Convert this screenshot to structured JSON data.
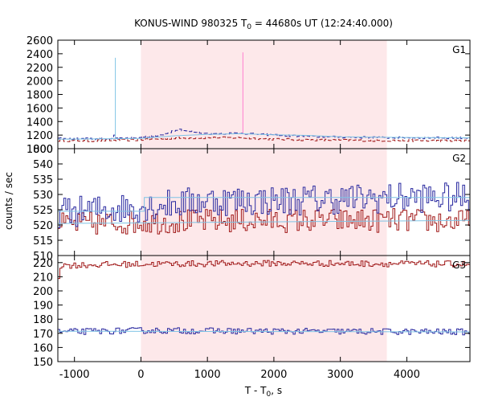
{
  "chart_data": {
    "type": "line",
    "title": {
      "main": "KONUS-WIND 980325 T",
      "sub": "0",
      "rest": " = 44680s UT (12:24:40.000)"
    },
    "xlabel": {
      "main": "T - T",
      "sub": "0",
      "rest": ", s"
    },
    "ylabel": "counts / sec",
    "xlim": [
      -1250,
      4950
    ],
    "x_ticks": [
      -1000,
      0,
      1000,
      2000,
      3000,
      4000
    ],
    "x_tick_labels": [
      "-1000",
      "0",
      "1000",
      "2000",
      "3000",
      "4000"
    ],
    "highlight_interval": [
      0,
      3700
    ],
    "colors": {
      "red_series": "#a01818",
      "blue_series": "#2a2aa0",
      "fit_line": "#7fc4e6",
      "pink_spike": "#ff7fcf",
      "highlight": "#fde8ea"
    },
    "panels": [
      {
        "label": "G1",
        "ylim": [
          1000,
          2600
        ],
        "y_ticks": [
          1000,
          1200,
          1400,
          1600,
          1800,
          2000,
          2200,
          2400,
          2600
        ],
        "y_tick_labels": [
          "1000",
          "1200",
          "1400",
          "1600",
          "1800",
          "2000",
          "2200",
          "2400",
          "2600"
        ],
        "extra_bottom_tick": 800,
        "series": [
          {
            "key": "g1-red",
            "color": "#a01818",
            "dashed": true,
            "style": "step",
            "points": [
              [
                -1250,
                1120
              ],
              [
                -800,
                1115
              ],
              [
                -400,
                1125
              ],
              [
                0,
                1130
              ],
              [
                500,
                1155
              ],
              [
                1000,
                1160
              ],
              [
                1500,
                1160
              ],
              [
                2000,
                1140
              ],
              [
                2500,
                1130
              ],
              [
                3000,
                1125
              ],
              [
                3500,
                1120
              ],
              [
                4000,
                1120
              ],
              [
                4950,
                1115
              ]
            ],
            "noise": 15,
            "step": 30
          },
          {
            "key": "g1-blue",
            "color": "#2a2aa0",
            "dashed": true,
            "style": "step",
            "points": [
              [
                -1250,
                1150
              ],
              [
                -800,
                1145
              ],
              [
                -400,
                1150
              ],
              [
                -390,
                1240
              ],
              [
                -370,
                1150
              ],
              [
                0,
                1170
              ],
              [
                300,
                1190
              ],
              [
                550,
                1290
              ],
              [
                700,
                1260
              ],
              [
                1000,
                1220
              ],
              [
                1500,
                1230
              ],
              [
                2000,
                1200
              ],
              [
                2500,
                1180
              ],
              [
                3000,
                1170
              ],
              [
                3500,
                1165
              ],
              [
                4000,
                1160
              ],
              [
                4950,
                1160
              ]
            ],
            "noise": 14,
            "step": 30
          },
          {
            "key": "g1-fit",
            "color": "#7fc4e6",
            "style": "smooth",
            "points": [
              [
                -1250,
                1140
              ],
              [
                0,
                1150
              ],
              [
                500,
                1190
              ],
              [
                1000,
                1210
              ],
              [
                1500,
                1220
              ],
              [
                2000,
                1205
              ],
              [
                2500,
                1195
              ],
              [
                3000,
                1175
              ],
              [
                4000,
                1165
              ],
              [
                4950,
                1160
              ]
            ]
          },
          {
            "key": "g1-spike-blue",
            "color": "#7fc4e6",
            "style": "spike",
            "points": [
              [
                -385,
                1160
              ],
              [
                -385,
                2340
              ]
            ]
          },
          {
            "key": "g1-spike-pink",
            "color": "#ff7fcf",
            "style": "spike",
            "points": [
              [
                1535,
                1230
              ],
              [
                1535,
                2420
              ]
            ]
          }
        ]
      },
      {
        "label": "G2",
        "ylim": [
          510,
          545
        ],
        "y_ticks": [
          510,
          515,
          520,
          525,
          530,
          535,
          540
        ],
        "y_tick_labels": [
          "510",
          "515",
          "520",
          "525",
          "530",
          "535",
          "540"
        ],
        "series": [
          {
            "key": "g2-red",
            "color": "#a01818",
            "style": "step",
            "points": [
              [
                -1250,
                520
              ],
              [
                0,
                521
              ],
              [
                2000,
                521.5
              ],
              [
                4000,
                521.5
              ],
              [
                4950,
                521
              ]
            ],
            "noise": 4,
            "step": 30
          },
          {
            "key": "g2-blue",
            "color": "#2a2aa0",
            "style": "step",
            "points": [
              [
                -1250,
                524
              ],
              [
                0,
                526
              ],
              [
                1000,
                528
              ],
              [
                2000,
                528
              ],
              [
                4000,
                529
              ],
              [
                4950,
                529
              ]
            ],
            "noise": 5,
            "step": 30
          },
          {
            "key": "g2-fit-blue",
            "color": "#7fc4e6",
            "style": "flat",
            "points": [
              [
                -1250,
                524.5
              ],
              [
                50,
                524.5
              ],
              [
                50,
                529
              ],
              [
                4950,
                529
              ]
            ]
          },
          {
            "key": "g2-fit-red",
            "color": "#7fc4e6",
            "style": "flat",
            "points": [
              [
                -1250,
                520.5
              ],
              [
                4950,
                521.5
              ]
            ]
          }
        ]
      },
      {
        "label": "G3",
        "ylim": [
          150,
          225
        ],
        "y_ticks": [
          150,
          160,
          170,
          180,
          190,
          200,
          210,
          220
        ],
        "y_tick_labels": [
          "150",
          "160",
          "170",
          "180",
          "190",
          "200",
          "210",
          "220"
        ],
        "series": [
          {
            "key": "g3-red",
            "color": "#a01818",
            "style": "step",
            "points": [
              [
                -1250,
                200
              ],
              [
                -1220,
                218
              ],
              [
                0,
                219
              ],
              [
                2000,
                219.5
              ],
              [
                4950,
                219
              ]
            ],
            "noise": 2.2,
            "step": 30
          },
          {
            "key": "g3-blue",
            "color": "#2a2aa0",
            "style": "step",
            "points": [
              [
                -1250,
                171
              ],
              [
                0,
                172
              ],
              [
                2000,
                171.5
              ],
              [
                4950,
                171
              ]
            ],
            "noise": 2.2,
            "step": 30
          },
          {
            "key": "g3-fit",
            "color": "#7fc4e6",
            "style": "flat",
            "points": [
              [
                -1250,
                171.5
              ],
              [
                4950,
                171
              ]
            ]
          }
        ]
      }
    ]
  }
}
